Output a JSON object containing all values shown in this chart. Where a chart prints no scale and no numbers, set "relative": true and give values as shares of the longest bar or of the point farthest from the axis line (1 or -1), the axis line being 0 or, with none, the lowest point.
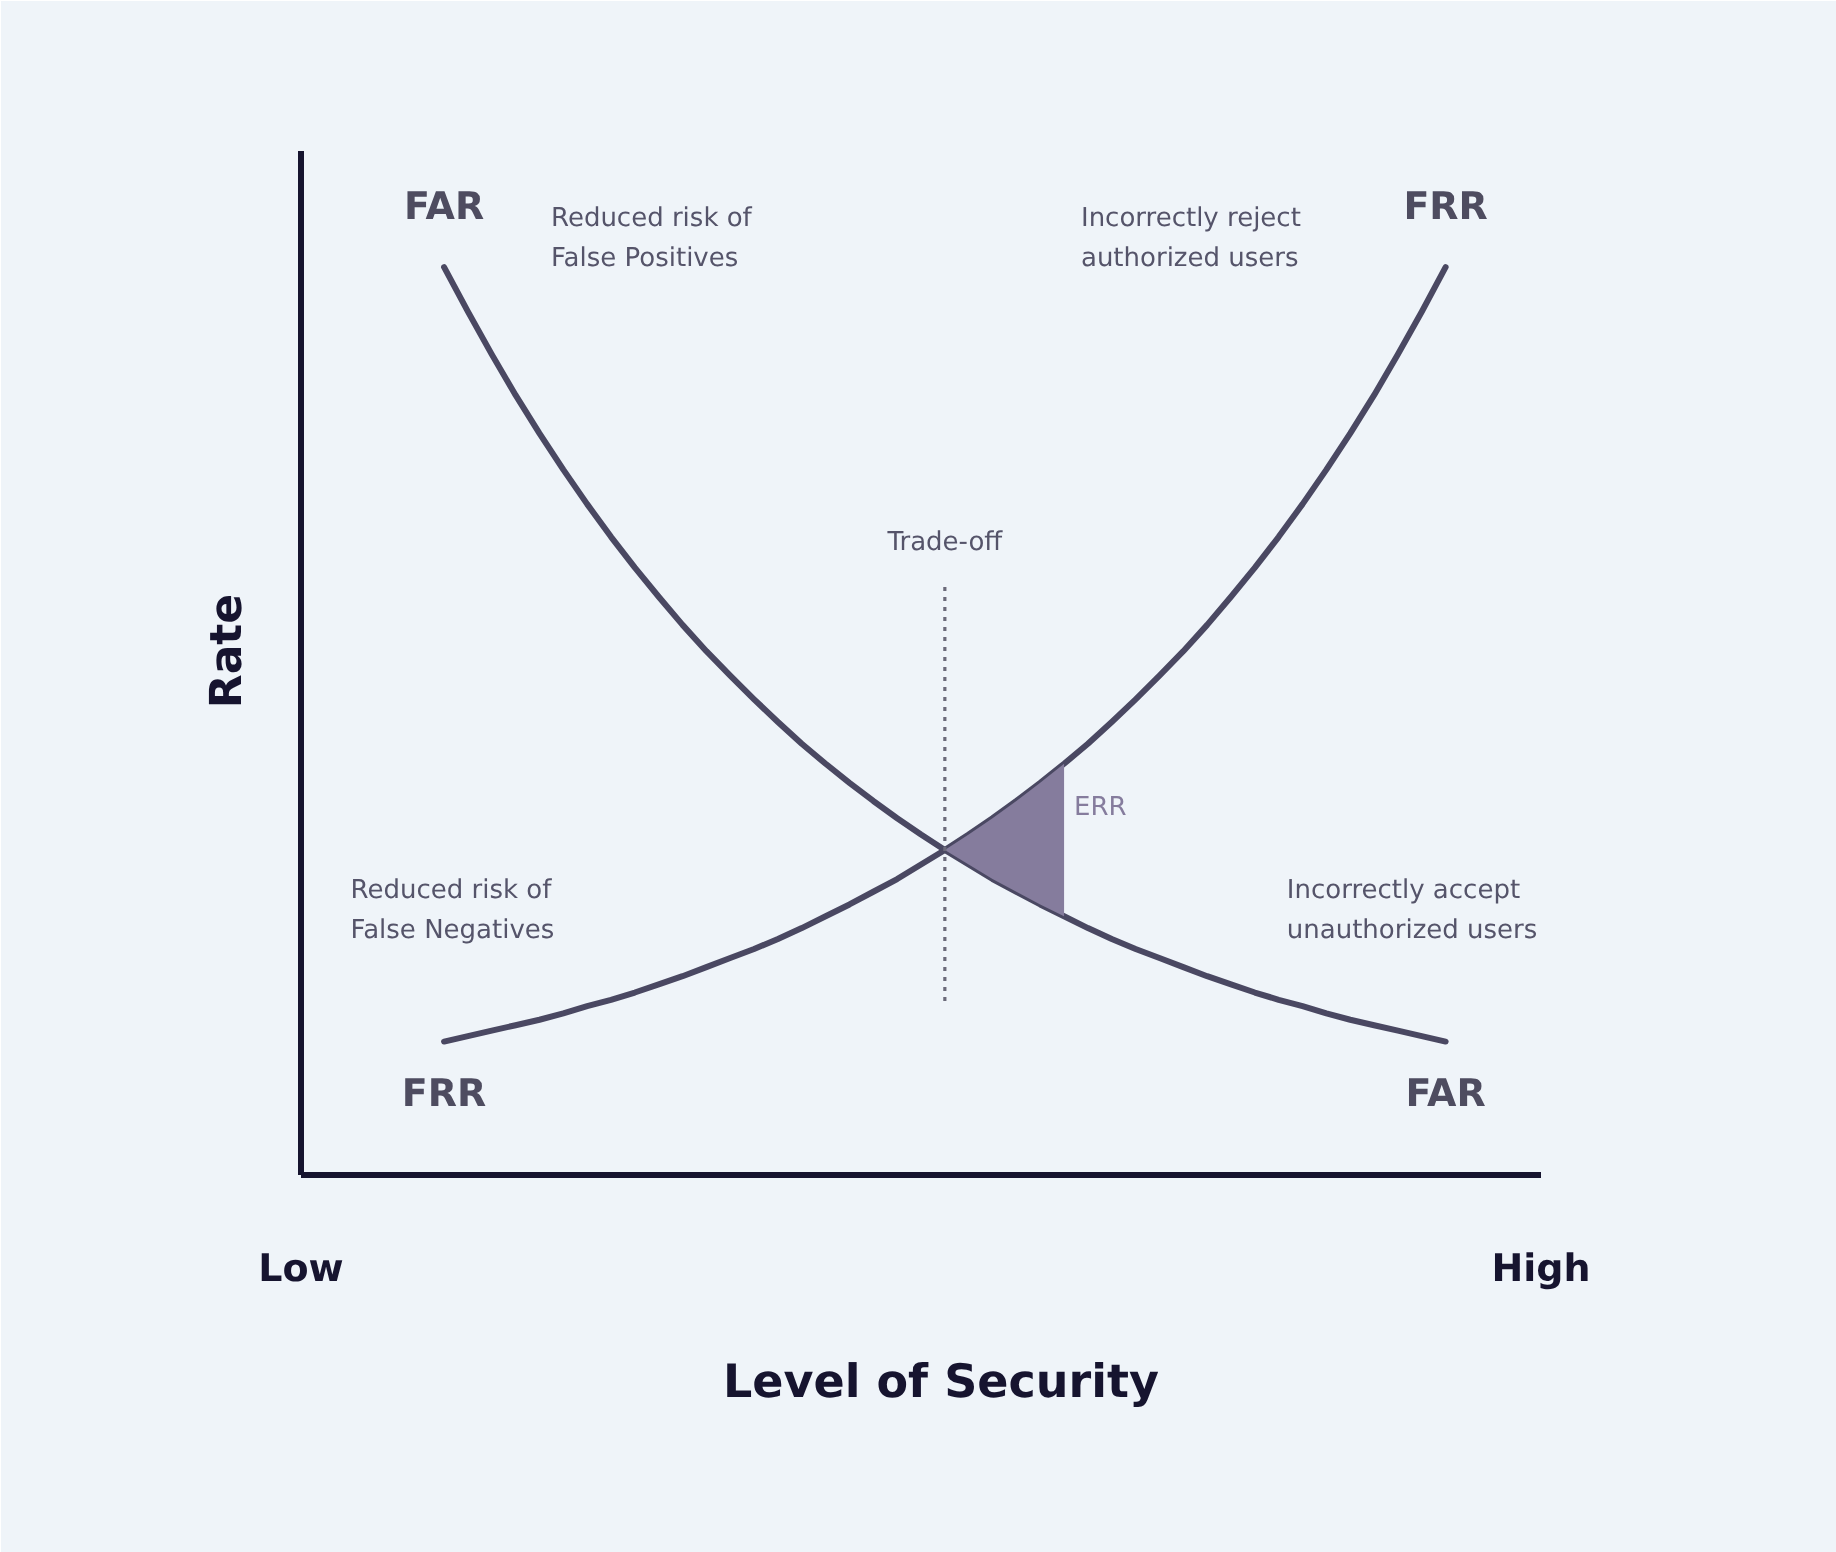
{
  "chart_data": {
    "type": "line",
    "relative": true,
    "xlabel": "Level of Security",
    "ylabel": "Rate",
    "tick_labels": "x",
    "categories": [
      "Low",
      null,
      null,
      null,
      null,
      null,
      null,
      null,
      null,
      null,
      null,
      null,
      null,
      null,
      null,
      null,
      null,
      null,
      null,
      null,
      null,
      null,
      null,
      null,
      null,
      null,
      null,
      null,
      null,
      null,
      null,
      null,
      null,
      null,
      null,
      null,
      null,
      null,
      null,
      null,
      null,
      null,
      null,
      null,
      null,
      null,
      null,
      null,
      null,
      null,
      null,
      null,
      "High"
    ],
    "series": [
      {
        "name": "FAR",
        "color": "#4a4862",
        "values": [
          null,
          null,
          null,
          null,
          null,
          null,
          1.0,
          0.951,
          0.904,
          0.859,
          0.817,
          0.777,
          0.739,
          0.703,
          0.669,
          0.637,
          0.606,
          0.577,
          0.55,
          0.524,
          0.499,
          0.475,
          0.453,
          0.432,
          0.412,
          0.393,
          0.375,
          0.358,
          0.342,
          0.326,
          0.312,
          0.298,
          0.285,
          0.272,
          0.26,
          0.249,
          0.239,
          0.229,
          0.219,
          0.21,
          0.201,
          0.193,
          0.186,
          0.178,
          0.171,
          0.165,
          0.159,
          0.153,
          0.147,
          null,
          null,
          null,
          null
        ]
      },
      {
        "name": "FRR",
        "color": "#4a4862",
        "values": [
          null,
          null,
          null,
          null,
          null,
          null,
          0.147,
          0.153,
          0.159,
          0.165,
          0.171,
          0.178,
          0.186,
          0.193,
          0.201,
          0.21,
          0.219,
          0.229,
          0.239,
          0.249,
          0.26,
          0.272,
          0.285,
          0.298,
          0.312,
          0.326,
          0.342,
          0.358,
          0.375,
          0.393,
          0.412,
          0.432,
          0.453,
          0.475,
          0.499,
          0.524,
          0.55,
          0.577,
          0.606,
          0.637,
          0.669,
          0.703,
          0.739,
          0.777,
          0.817,
          0.859,
          0.904,
          0.951,
          1.0,
          null,
          null,
          null,
          null
        ]
      },
      {
        "name": "ERR",
        "type": "area",
        "color": "#857c9d",
        "values": [
          null,
          null,
          null,
          null,
          null,
          null,
          null,
          null,
          null,
          null,
          null,
          null,
          null,
          null,
          null,
          null,
          null,
          null,
          null,
          null,
          null,
          null,
          null,
          null,
          null,
          null,
          null,
          0.358,
          0.375,
          0.393,
          0.412,
          0.432,
          0.453,
          null,
          null,
          null,
          null,
          null,
          null,
          null,
          null,
          null,
          null,
          null,
          null,
          null,
          null,
          null,
          null,
          null,
          null,
          null,
          null
        ]
      }
    ],
    "annotations": [
      "Reduced risk of\nFalse Positives",
      "Incorrectly reject\nauthorized users",
      "Trade-off",
      "Reduced risk of\nFalse Negatives",
      "Incorrectly accept\nunauthorized users"
    ]
  }
}
